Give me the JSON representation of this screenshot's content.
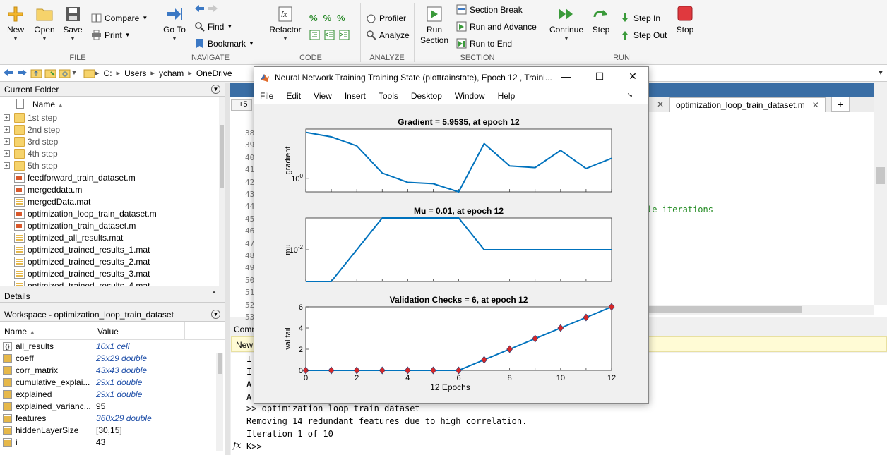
{
  "ribbon": {
    "file": {
      "new": "New",
      "open": "Open",
      "save": "Save",
      "compare": "Compare",
      "print": "Print",
      "label": "FILE"
    },
    "navigate": {
      "goto": "Go To",
      "find": "Find",
      "bookmark": "Bookmark",
      "label": "NAVIGATE"
    },
    "code": {
      "refactor": "Refactor",
      "label": "CODE"
    },
    "analyze": {
      "profiler": "Profiler",
      "analyze": "Analyze",
      "label": "ANALYZE"
    },
    "section": {
      "run_section": "Run Section",
      "section_break": "Section Break",
      "run_and_advance": "Run and Advance",
      "run_to_end": "Run to End",
      "label": "SECTION"
    },
    "run": {
      "continue": "Continue",
      "step": "Step",
      "step_in": "Step In",
      "step_out": "Step Out",
      "stop": "Stop",
      "label": "RUN"
    }
  },
  "address": {
    "crumbs": [
      "C:",
      "Users",
      "ycham",
      "OneDrive"
    ]
  },
  "current_folder": {
    "title": "Current Folder",
    "column": "Name",
    "items": [
      {
        "name": "1st step",
        "kind": "folder"
      },
      {
        "name": "2nd step",
        "kind": "folder"
      },
      {
        "name": "3rd step",
        "kind": "folder"
      },
      {
        "name": "4th step",
        "kind": "folder"
      },
      {
        "name": "5th step",
        "kind": "folder"
      },
      {
        "name": "feedforward_train_dataset.m",
        "kind": "m"
      },
      {
        "name": "mergeddata.m",
        "kind": "m"
      },
      {
        "name": "mergedData.mat",
        "kind": "mat"
      },
      {
        "name": "optimization_loop_train_dataset.m",
        "kind": "m"
      },
      {
        "name": "optimization_train_dataset.m",
        "kind": "m"
      },
      {
        "name": "optimized_all_results.mat",
        "kind": "mat"
      },
      {
        "name": "optimized_trained_results_1.mat",
        "kind": "mat"
      },
      {
        "name": "optimized_trained_results_2.mat",
        "kind": "mat"
      },
      {
        "name": "optimized_trained_results_3.mat",
        "kind": "mat"
      },
      {
        "name": "optimized_trained_results_4.mat",
        "kind": "mat"
      }
    ]
  },
  "details": {
    "title": "Details"
  },
  "workspace": {
    "title": "Workspace - optimization_loop_train_dataset",
    "col_name": "Name",
    "col_value": "Value",
    "rows": [
      {
        "name": "all_results",
        "value": "10x1 cell",
        "dim": true,
        "cell": true
      },
      {
        "name": "coeff",
        "value": "29x29 double",
        "dim": true
      },
      {
        "name": "corr_matrix",
        "value": "43x43 double",
        "dim": true
      },
      {
        "name": "cumulative_explai...",
        "value": "29x1 double",
        "dim": true
      },
      {
        "name": "explained",
        "value": "29x1 double",
        "dim": true
      },
      {
        "name": "explained_varianc...",
        "value": "95",
        "dim": false
      },
      {
        "name": "features",
        "value": "360x29 double",
        "dim": true
      },
      {
        "name": "hiddenLayerSize",
        "value": "[30,15]",
        "dim": false
      },
      {
        "name": "i",
        "value": "43",
        "dim": false
      }
    ]
  },
  "editor": {
    "tab": "optimization_loop_train_dataset.m",
    "add_tab": "+",
    "gutter_label": "+5",
    "line_numbers": [
      "38",
      "39",
      "40",
      "41",
      "42",
      "43",
      "44",
      "45",
      "46",
      "47",
      "48",
      "49",
      "50",
      "51",
      "52",
      "53"
    ],
    "visible_code": "le iterations"
  },
  "command_window": {
    "title": "Comm",
    "banner": "New",
    "lines": [
      "I",
      "I",
      "A",
      "A",
      ">> optimization_loop_train_dataset",
      "Removing 14 redundant features due to high correlation.",
      "Iteration 1 of 10"
    ],
    "prompt": "K>>",
    "fx": "fx"
  },
  "figure": {
    "title": "Neural Network Training Training State (plottrainstate), Epoch 12 , Traini...",
    "menu": [
      "File",
      "Edit",
      "View",
      "Insert",
      "Tools",
      "Desktop",
      "Window",
      "Help"
    ],
    "controls": {
      "minimize": "—",
      "maximize": "☐",
      "close": "✕"
    }
  },
  "chart_data": [
    {
      "type": "line",
      "title": "Gradient = 5.9535, at epoch 12",
      "ylabel": "gradient",
      "yscale": "log",
      "ytick_label": "10^0",
      "x": [
        0,
        1,
        2,
        3,
        4,
        5,
        6,
        7,
        8,
        9,
        10,
        11,
        12
      ],
      "values": [
        60,
        40,
        18,
        1.6,
        0.7,
        0.62,
        0.3,
        22,
        3,
        2.6,
        12,
        2.4,
        5.9535
      ],
      "ylim": [
        0.3,
        80
      ],
      "xlim": [
        0,
        12
      ],
      "color": "#0072bd"
    },
    {
      "type": "line",
      "title": "Mu = 0.01, at epoch 12",
      "ylabel": "mu",
      "yscale": "log",
      "ytick_label": "10^-2",
      "x": [
        0,
        1,
        2,
        3,
        4,
        5,
        6,
        7,
        8,
        9,
        10,
        11,
        12
      ],
      "values": [
        0.001,
        0.001,
        0.01,
        0.1,
        0.1,
        0.1,
        0.1,
        0.01,
        0.01,
        0.01,
        0.01,
        0.01,
        0.01
      ],
      "ylim": [
        0.001,
        0.1
      ],
      "xlim": [
        0,
        12
      ],
      "color": "#0072bd"
    },
    {
      "type": "scatter",
      "title": "Validation Checks = 6, at epoch 12",
      "ylabel": "val fail",
      "xlabel": "12 Epochs",
      "x": [
        0,
        1,
        2,
        3,
        4,
        5,
        6,
        7,
        8,
        9,
        10,
        11,
        12
      ],
      "values": [
        0,
        0,
        0,
        0,
        0,
        0,
        0,
        1,
        2,
        3,
        4,
        5,
        6
      ],
      "ylim": [
        0,
        6
      ],
      "xlim": [
        0,
        12
      ],
      "yticks": [
        0,
        2,
        4,
        6
      ],
      "xticks": [
        0,
        2,
        4,
        6,
        8,
        10,
        12
      ],
      "marker_color": "#d62728",
      "line_color": "#0072bd"
    }
  ]
}
